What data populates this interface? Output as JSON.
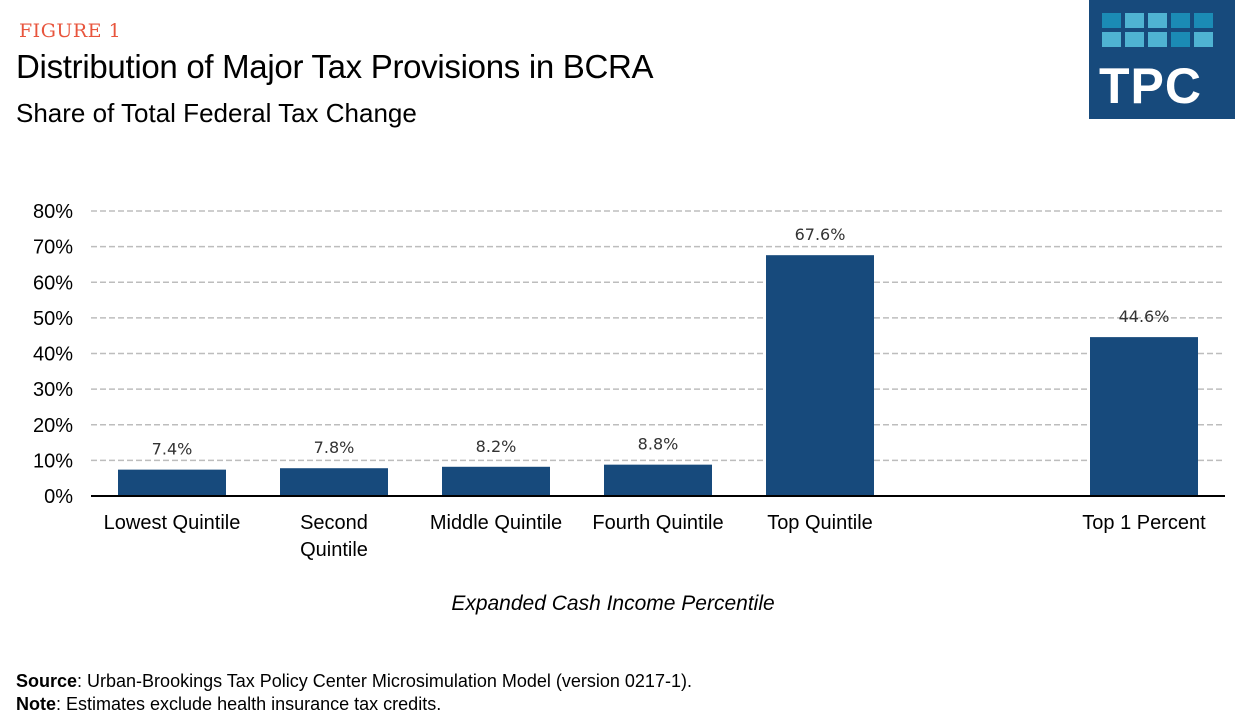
{
  "header": {
    "figure_label": "FIGURE 1",
    "title": "Distribution of Major Tax Provisions in BCRA",
    "subtitle": "Share of Total Federal Tax Change"
  },
  "logo": {
    "text": "TPC",
    "colors": {
      "background": "#174a7c",
      "tile_light": "#4fb3d2",
      "tile_dark": "#1b8bb5"
    }
  },
  "chart_data": {
    "type": "bar",
    "title": "Distribution of Major Tax Provisions in BCRA",
    "subtitle": "Share of Total Federal Tax Change",
    "xlabel": "Expanded Cash Income Percentile",
    "ylabel": "",
    "ylim": [
      0,
      80
    ],
    "yticks": [
      0,
      10,
      20,
      30,
      40,
      50,
      60,
      70,
      80
    ],
    "ytick_labels": [
      "0%",
      "10%",
      "20%",
      "30%",
      "40%",
      "50%",
      "60%",
      "70%",
      "80%"
    ],
    "grid": true,
    "grid_style": "dashed",
    "legend": "none",
    "bar_color": "#174a7c",
    "categories": [
      "Lowest Quintile",
      "Second Quintile",
      "Middle Quintile",
      "Fourth Quintile",
      "Top Quintile",
      "",
      "Top 1 Percent"
    ],
    "category_label_lines": [
      [
        "Lowest Quintile"
      ],
      [
        "Second",
        "Quintile"
      ],
      [
        "Middle Quintile"
      ],
      [
        "Fourth Quintile"
      ],
      [
        "Top Quintile"
      ],
      [],
      [
        "Top 1 Percent"
      ]
    ],
    "values": [
      7.4,
      7.8,
      8.2,
      8.8,
      67.6,
      null,
      44.6
    ],
    "data_labels": [
      "7.4%",
      "7.8%",
      "8.2%",
      "8.8%",
      "67.6%",
      "",
      "44.6%"
    ]
  },
  "footer": {
    "source_label": "Source",
    "source_text": ": Urban-Brookings Tax Policy Center Microsimulation Model (version 0217-1).",
    "note_label": "Note",
    "note_text": ": Estimates exclude health insurance tax credits."
  }
}
